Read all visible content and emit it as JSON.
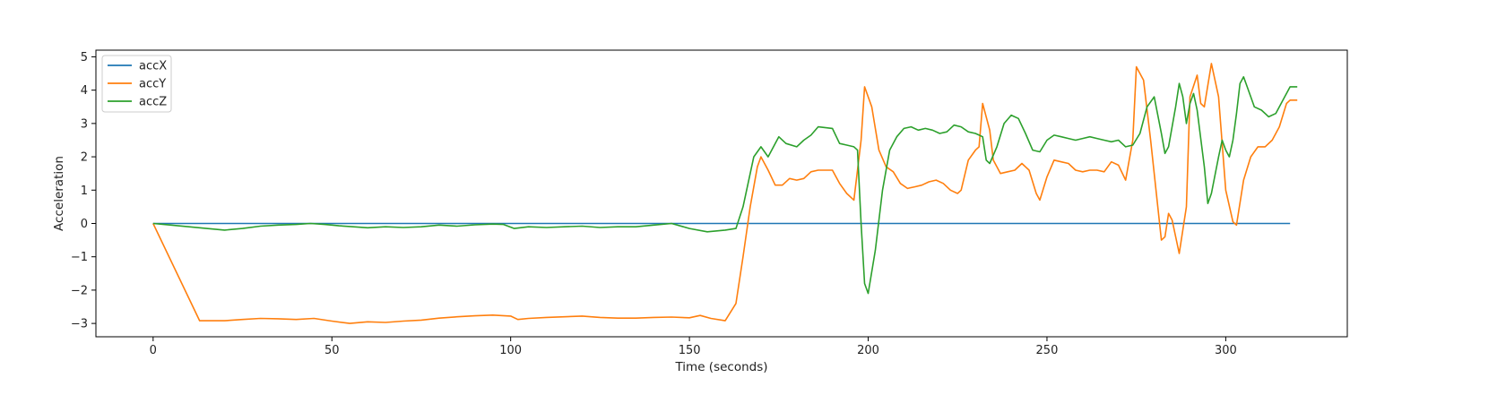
{
  "chart_data": {
    "type": "line",
    "title": "",
    "xlabel": "Time (seconds)",
    "ylabel": "Acceleration",
    "xlim": [
      -16,
      334
    ],
    "ylim": [
      -3.4,
      5.2
    ],
    "xticks": [
      0,
      50,
      100,
      150,
      200,
      250,
      300
    ],
    "yticks": [
      -3,
      -2,
      -1,
      0,
      1,
      2,
      3,
      4,
      5
    ],
    "grid": false,
    "legend": "top-left",
    "series": [
      {
        "name": "accX",
        "color": "#1f77b4",
        "points": [
          [
            0,
            0
          ],
          [
            318,
            0
          ]
        ]
      },
      {
        "name": "accY",
        "color": "#ff7f0e",
        "points": [
          [
            0,
            0
          ],
          [
            13,
            -2.92
          ],
          [
            20,
            -2.92
          ],
          [
            25,
            -2.88
          ],
          [
            30,
            -2.85
          ],
          [
            35,
            -2.86
          ],
          [
            40,
            -2.88
          ],
          [
            45,
            -2.85
          ],
          [
            50,
            -2.93
          ],
          [
            55,
            -3.0
          ],
          [
            60,
            -2.95
          ],
          [
            65,
            -2.97
          ],
          [
            70,
            -2.93
          ],
          [
            75,
            -2.9
          ],
          [
            80,
            -2.84
          ],
          [
            85,
            -2.8
          ],
          [
            90,
            -2.77
          ],
          [
            95,
            -2.75
          ],
          [
            100,
            -2.78
          ],
          [
            102,
            -2.88
          ],
          [
            105,
            -2.85
          ],
          [
            110,
            -2.82
          ],
          [
            115,
            -2.8
          ],
          [
            120,
            -2.78
          ],
          [
            125,
            -2.82
          ],
          [
            130,
            -2.84
          ],
          [
            135,
            -2.84
          ],
          [
            140,
            -2.82
          ],
          [
            145,
            -2.81
          ],
          [
            150,
            -2.83
          ],
          [
            153,
            -2.76
          ],
          [
            156,
            -2.85
          ],
          [
            160,
            -2.92
          ],
          [
            163,
            -2.4
          ],
          [
            165,
            -1.0
          ],
          [
            167,
            0.5
          ],
          [
            169,
            1.7
          ],
          [
            170,
            2.0
          ],
          [
            172,
            1.6
          ],
          [
            174,
            1.15
          ],
          [
            176,
            1.15
          ],
          [
            178,
            1.35
          ],
          [
            180,
            1.3
          ],
          [
            182,
            1.35
          ],
          [
            184,
            1.55
          ],
          [
            186,
            1.6
          ],
          [
            190,
            1.6
          ],
          [
            192,
            1.2
          ],
          [
            194,
            0.9
          ],
          [
            196,
            0.7
          ],
          [
            198,
            2.5
          ],
          [
            199,
            4.1
          ],
          [
            201,
            3.5
          ],
          [
            203,
            2.2
          ],
          [
            205,
            1.7
          ],
          [
            207,
            1.55
          ],
          [
            209,
            1.2
          ],
          [
            211,
            1.05
          ],
          [
            213,
            1.1
          ],
          [
            215,
            1.15
          ],
          [
            217,
            1.25
          ],
          [
            219,
            1.3
          ],
          [
            221,
            1.2
          ],
          [
            223,
            1.0
          ],
          [
            225,
            0.9
          ],
          [
            226,
            1.0
          ],
          [
            228,
            1.9
          ],
          [
            230,
            2.2
          ],
          [
            231,
            2.3
          ],
          [
            232,
            3.6
          ],
          [
            234,
            2.8
          ],
          [
            235,
            1.9
          ],
          [
            237,
            1.5
          ],
          [
            239,
            1.55
          ],
          [
            241,
            1.6
          ],
          [
            243,
            1.8
          ],
          [
            245,
            1.6
          ],
          [
            247,
            0.9
          ],
          [
            248,
            0.7
          ],
          [
            250,
            1.4
          ],
          [
            252,
            1.9
          ],
          [
            254,
            1.85
          ],
          [
            256,
            1.8
          ],
          [
            258,
            1.6
          ],
          [
            260,
            1.55
          ],
          [
            262,
            1.6
          ],
          [
            264,
            1.6
          ],
          [
            266,
            1.55
          ],
          [
            268,
            1.85
          ],
          [
            270,
            1.75
          ],
          [
            272,
            1.3
          ],
          [
            274,
            2.5
          ],
          [
            275,
            4.7
          ],
          [
            277,
            4.3
          ],
          [
            279,
            2.5
          ],
          [
            281,
            0.5
          ],
          [
            282,
            -0.5
          ],
          [
            283,
            -0.4
          ],
          [
            284,
            0.3
          ],
          [
            285,
            0.1
          ],
          [
            287,
            -0.9
          ],
          [
            289,
            0.5
          ],
          [
            290,
            3.8
          ],
          [
            292,
            4.45
          ],
          [
            293,
            3.6
          ],
          [
            294,
            3.5
          ],
          [
            296,
            4.8
          ],
          [
            298,
            3.8
          ],
          [
            300,
            1.0
          ],
          [
            302,
            0.05
          ],
          [
            303,
            -0.05
          ],
          [
            305,
            1.3
          ],
          [
            307,
            2.0
          ],
          [
            309,
            2.3
          ],
          [
            311,
            2.3
          ],
          [
            313,
            2.5
          ],
          [
            315,
            2.9
          ],
          [
            317,
            3.6
          ],
          [
            318,
            3.7
          ],
          [
            320,
            3.7
          ]
        ]
      },
      {
        "name": "accZ",
        "color": "#2ca02c",
        "points": [
          [
            0,
            0
          ],
          [
            5,
            -0.05
          ],
          [
            10,
            -0.1
          ],
          [
            15,
            -0.15
          ],
          [
            18,
            -0.18
          ],
          [
            20,
            -0.2
          ],
          [
            25,
            -0.15
          ],
          [
            30,
            -0.08
          ],
          [
            35,
            -0.05
          ],
          [
            40,
            -0.03
          ],
          [
            44,
            0
          ],
          [
            48,
            -0.03
          ],
          [
            52,
            -0.07
          ],
          [
            56,
            -0.1
          ],
          [
            60,
            -0.13
          ],
          [
            65,
            -0.1
          ],
          [
            70,
            -0.12
          ],
          [
            75,
            -0.1
          ],
          [
            80,
            -0.05
          ],
          [
            85,
            -0.08
          ],
          [
            90,
            -0.04
          ],
          [
            95,
            -0.02
          ],
          [
            98,
            -0.03
          ],
          [
            101,
            -0.15
          ],
          [
            105,
            -0.1
          ],
          [
            110,
            -0.12
          ],
          [
            115,
            -0.1
          ],
          [
            120,
            -0.08
          ],
          [
            125,
            -0.12
          ],
          [
            130,
            -0.1
          ],
          [
            135,
            -0.1
          ],
          [
            140,
            -0.05
          ],
          [
            145,
            0
          ],
          [
            150,
            -0.15
          ],
          [
            155,
            -0.25
          ],
          [
            160,
            -0.2
          ],
          [
            163,
            -0.15
          ],
          [
            165,
            0.5
          ],
          [
            167,
            1.5
          ],
          [
            168,
            2.0
          ],
          [
            170,
            2.3
          ],
          [
            172,
            2.0
          ],
          [
            174,
            2.4
          ],
          [
            175,
            2.6
          ],
          [
            177,
            2.4
          ],
          [
            180,
            2.3
          ],
          [
            182,
            2.5
          ],
          [
            184,
            2.65
          ],
          [
            186,
            2.9
          ],
          [
            190,
            2.85
          ],
          [
            192,
            2.4
          ],
          [
            194,
            2.35
          ],
          [
            196,
            2.3
          ],
          [
            197,
            2.2
          ],
          [
            198,
            0.0
          ],
          [
            199,
            -1.8
          ],
          [
            200,
            -2.1
          ],
          [
            202,
            -0.8
          ],
          [
            204,
            1.0
          ],
          [
            206,
            2.2
          ],
          [
            208,
            2.6
          ],
          [
            210,
            2.85
          ],
          [
            212,
            2.9
          ],
          [
            214,
            2.8
          ],
          [
            216,
            2.85
          ],
          [
            218,
            2.8
          ],
          [
            220,
            2.7
          ],
          [
            222,
            2.75
          ],
          [
            224,
            2.95
          ],
          [
            226,
            2.9
          ],
          [
            228,
            2.75
          ],
          [
            230,
            2.7
          ],
          [
            232,
            2.6
          ],
          [
            233,
            1.9
          ],
          [
            234,
            1.8
          ],
          [
            236,
            2.3
          ],
          [
            238,
            3.0
          ],
          [
            240,
            3.25
          ],
          [
            242,
            3.15
          ],
          [
            244,
            2.7
          ],
          [
            246,
            2.2
          ],
          [
            248,
            2.15
          ],
          [
            250,
            2.5
          ],
          [
            252,
            2.65
          ],
          [
            254,
            2.6
          ],
          [
            256,
            2.55
          ],
          [
            258,
            2.5
          ],
          [
            260,
            2.55
          ],
          [
            262,
            2.6
          ],
          [
            264,
            2.55
          ],
          [
            266,
            2.5
          ],
          [
            268,
            2.45
          ],
          [
            270,
            2.5
          ],
          [
            272,
            2.3
          ],
          [
            274,
            2.35
          ],
          [
            276,
            2.7
          ],
          [
            278,
            3.5
          ],
          [
            280,
            3.8
          ],
          [
            282,
            2.7
          ],
          [
            283,
            2.1
          ],
          [
            284,
            2.3
          ],
          [
            286,
            3.5
          ],
          [
            287,
            4.2
          ],
          [
            288,
            3.8
          ],
          [
            289,
            3.0
          ],
          [
            290,
            3.6
          ],
          [
            291,
            3.9
          ],
          [
            292,
            3.4
          ],
          [
            294,
            1.7
          ],
          [
            295,
            0.6
          ],
          [
            296,
            0.9
          ],
          [
            298,
            2.0
          ],
          [
            299,
            2.5
          ],
          [
            300,
            2.2
          ],
          [
            301,
            2.0
          ],
          [
            302,
            2.5
          ],
          [
            303,
            3.3
          ],
          [
            304,
            4.2
          ],
          [
            305,
            4.4
          ],
          [
            306,
            4.1
          ],
          [
            308,
            3.5
          ],
          [
            310,
            3.4
          ],
          [
            312,
            3.2
          ],
          [
            314,
            3.3
          ],
          [
            316,
            3.7
          ],
          [
            318,
            4.1
          ],
          [
            320,
            4.1
          ]
        ]
      }
    ]
  }
}
